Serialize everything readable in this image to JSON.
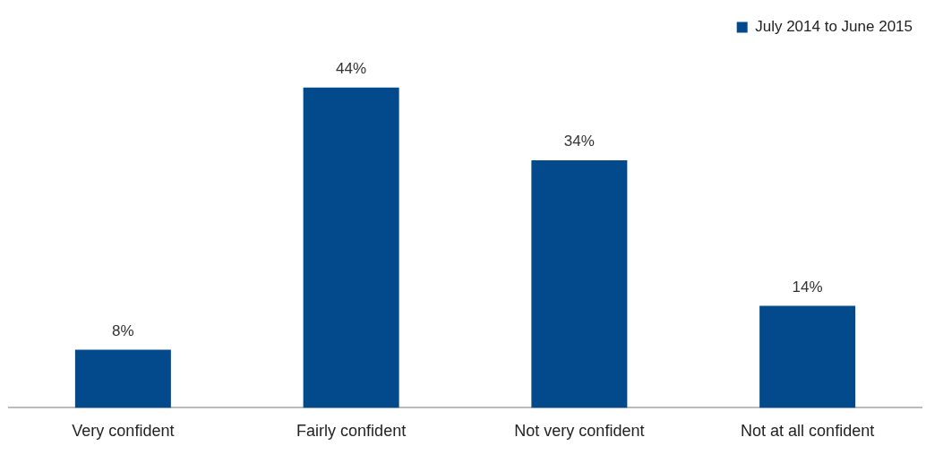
{
  "chart_data": {
    "type": "bar",
    "categories": [
      "Very confident",
      "Fairly confident",
      "Not very confident",
      "Not at all confident"
    ],
    "series": [
      {
        "name": "July 2014 to June 2015",
        "color": "#034a8c",
        "values": [
          8,
          44,
          34,
          14
        ],
        "value_labels": [
          "8%",
          "44%",
          "34%",
          "14%"
        ]
      }
    ],
    "tick_labels": "x",
    "grid": false,
    "legend": "top right"
  }
}
